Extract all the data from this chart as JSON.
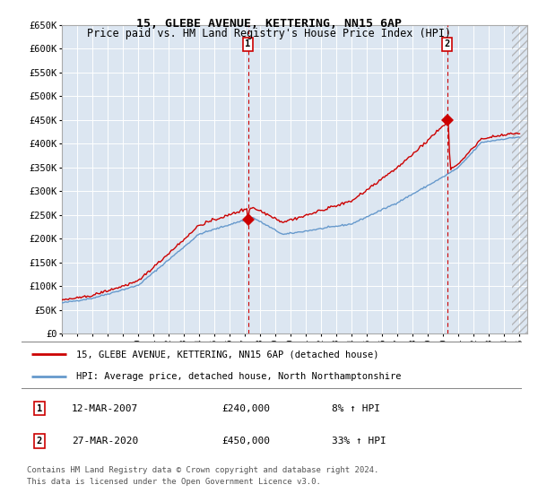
{
  "title": "15, GLEBE AVENUE, KETTERING, NN15 6AP",
  "subtitle": "Price paid vs. HM Land Registry's House Price Index (HPI)",
  "ylim": [
    0,
    650000
  ],
  "yticks": [
    0,
    50000,
    100000,
    150000,
    200000,
    250000,
    300000,
    350000,
    400000,
    450000,
    500000,
    550000,
    600000,
    650000
  ],
  "ytick_labels": [
    "£0",
    "£50K",
    "£100K",
    "£150K",
    "£200K",
    "£250K",
    "£300K",
    "£350K",
    "£400K",
    "£450K",
    "£500K",
    "£550K",
    "£600K",
    "£650K"
  ],
  "xlim_start": 1995.0,
  "xlim_end": 2025.5,
  "plot_bg": "#dce6f1",
  "fig_bg": "#ffffff",
  "grid_color": "#ffffff",
  "sale1_x": 2007.2,
  "sale1_y": 240000,
  "sale2_x": 2020.25,
  "sale2_y": 450000,
  "sale1_label": "1",
  "sale2_label": "2",
  "legend_line1": "15, GLEBE AVENUE, KETTERING, NN15 6AP (detached house)",
  "legend_line2": "HPI: Average price, detached house, North Northamptonshire",
  "note1_num": "1",
  "note1_date": "12-MAR-2007",
  "note1_price": "£240,000",
  "note1_hpi": "8% ↑ HPI",
  "note2_num": "2",
  "note2_date": "27-MAR-2020",
  "note2_price": "£450,000",
  "note2_hpi": "33% ↑ HPI",
  "footer": "Contains HM Land Registry data © Crown copyright and database right 2024.\nThis data is licensed under the Open Government Licence v3.0.",
  "red_line_color": "#cc0000",
  "blue_line_color": "#6699cc"
}
